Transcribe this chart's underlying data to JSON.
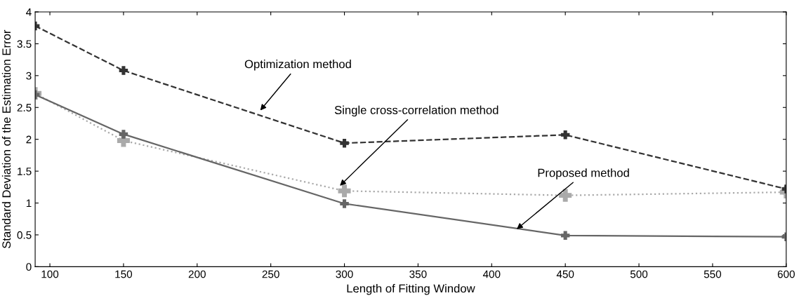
{
  "chart_data": {
    "type": "line",
    "xlabel": "Length of Fitting Window",
    "ylabel": "Standard Deviation of the Estimation Error",
    "x": [
      90,
      150,
      300,
      450,
      600
    ],
    "series": [
      {
        "color": "#333333",
        "line_style": "dashed",
        "values": [
          3.78,
          3.08,
          1.94,
          2.07,
          1.22
        ]
      },
      {
        "color": "#aaaaaa",
        "line_style": "dotted",
        "values": [
          2.72,
          1.98,
          1.19,
          1.12,
          1.17
        ]
      },
      {
        "color": "#666666",
        "line_style": "solid",
        "values": [
          2.7,
          2.08,
          0.99,
          0.49,
          0.47
        ]
      }
    ],
    "annotations": [
      {
        "text": "Optimization method",
        "x": 242,
        "y": 2.43
      },
      {
        "text": "Single cross-correlation method",
        "x": 296,
        "y": 1.25
      },
      {
        "text": "Proposed method",
        "x": 416,
        "y": 0.57
      }
    ],
    "xlim": [
      90,
      600
    ],
    "xticks": [
      100,
      150,
      200,
      250,
      300,
      350,
      400,
      450,
      500,
      550,
      600
    ],
    "ylim": [
      0,
      4
    ],
    "yticks": [
      0,
      0.5,
      1,
      1.5,
      2,
      2.5,
      3,
      3.5,
      4
    ],
    "marker": "cross",
    "grid": false,
    "legend": false
  }
}
